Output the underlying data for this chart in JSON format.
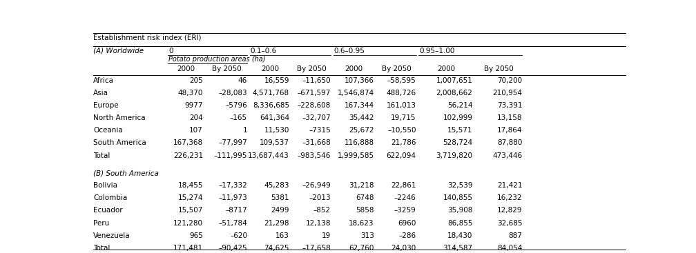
{
  "title": "Establishment risk index (ERI)",
  "section_a_label": "(A) Worldwide",
  "section_b_label": "(B) South America",
  "subheader": "Potato production areas (ha)",
  "eri_groups": [
    "0",
    "0.1–0.6",
    "0.6–0.95",
    "0.95–1.00"
  ],
  "col_headers": [
    "2000",
    "By 2050",
    "2000",
    "By 2050",
    "2000",
    "By 2050",
    "2000",
    "By 2050"
  ],
  "rows_a": [
    [
      "Africa",
      "205",
      "46",
      "16,559",
      "–11,650",
      "107,366",
      "–58,595",
      "1,007,651",
      "70,200"
    ],
    [
      "Asia",
      "48,370",
      "–28,083",
      "4,571,768",
      "–671,597",
      "1,546,874",
      "488,726",
      "2,008,662",
      "210,954"
    ],
    [
      "Europe",
      "9977",
      "–5796",
      "8,336,685",
      "–228,608",
      "167,344",
      "161,013",
      "56,214",
      "73,391"
    ],
    [
      "North America",
      "204",
      "–165",
      "641,364",
      "–32,707",
      "35,442",
      "19,715",
      "102,999",
      "13,158"
    ],
    [
      "Oceania",
      "107",
      "1",
      "11,530",
      "–7315",
      "25,672",
      "–10,550",
      "15,571",
      "17,864"
    ],
    [
      "South America",
      "167,368",
      "–77,997",
      "109,537",
      "–31,668",
      "116,888",
      "21,786",
      "528,724",
      "87,880"
    ],
    [
      "Total",
      "226,231",
      "–111,995",
      "13,687,443",
      "–983,546",
      "1,999,585",
      "622,094",
      "3,719,820",
      "473,446"
    ]
  ],
  "rows_b": [
    [
      "Bolivia",
      "18,455",
      "–17,332",
      "45,283",
      "–26,949",
      "31,218",
      "22,861",
      "32,539",
      "21,421"
    ],
    [
      "Colombia",
      "15,274",
      "–11,973",
      "5381",
      "–2013",
      "6748",
      "–2246",
      "140,855",
      "16,232"
    ],
    [
      "Ecuador",
      "15,507",
      "–8717",
      "2499",
      "–852",
      "5858",
      "–3259",
      "35,908",
      "12,829"
    ],
    [
      "Peru",
      "121,280",
      "–51,784",
      "21,298",
      "12,138",
      "18,623",
      "6960",
      "86,855",
      "32,685"
    ],
    [
      "Venezuela",
      "965",
      "–620",
      "163",
      "19",
      "313",
      "–286",
      "18,430",
      "887"
    ],
    [
      "Total",
      "171,481",
      "–90,425",
      "74,625",
      "–17,658",
      "62,760",
      "24,030",
      "314,587",
      "84,054"
    ]
  ],
  "bg_color": "#ffffff",
  "font_size": 7.5
}
